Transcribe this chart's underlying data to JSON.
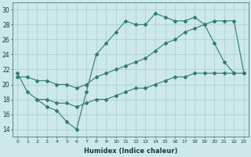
{
  "xlabel": "Humidex (Indice chaleur)",
  "x": [
    0,
    1,
    2,
    3,
    4,
    5,
    6,
    7,
    8,
    9,
    10,
    11,
    12,
    13,
    14,
    15,
    16,
    17,
    18,
    19,
    20,
    21,
    22,
    23
  ],
  "line1": [
    21.5,
    19.0,
    18.0,
    17.0,
    16.5,
    15.0,
    14.0,
    19.0,
    24.0,
    25.5,
    27.0,
    28.5,
    28.0,
    28.0,
    29.5,
    29.0,
    28.5,
    28.5,
    29.0,
    28.0,
    25.5,
    23.0,
    21.5,
    null
  ],
  "line2": [
    21.0,
    21.0,
    20.5,
    20.5,
    20.0,
    20.0,
    19.5,
    20.0,
    21.0,
    21.5,
    22.0,
    22.5,
    23.0,
    23.5,
    24.5,
    25.5,
    26.0,
    27.0,
    27.5,
    28.0,
    28.5,
    28.5,
    28.5,
    21.5
  ],
  "line3": [
    null,
    null,
    18.0,
    18.0,
    17.5,
    17.5,
    17.0,
    17.5,
    18.0,
    18.0,
    18.5,
    19.0,
    19.5,
    19.5,
    20.0,
    20.5,
    21.0,
    21.0,
    21.5,
    21.5,
    21.5,
    21.5,
    21.5,
    21.5
  ],
  "line_color": "#2e7d6e",
  "bg_color": "#cce8e8",
  "grid_color": "#aacccc",
  "ylim": [
    13,
    31
  ],
  "yticks": [
    14,
    16,
    18,
    20,
    22,
    24,
    26,
    28,
    30
  ],
  "xlim": [
    -0.5,
    23.5
  ]
}
